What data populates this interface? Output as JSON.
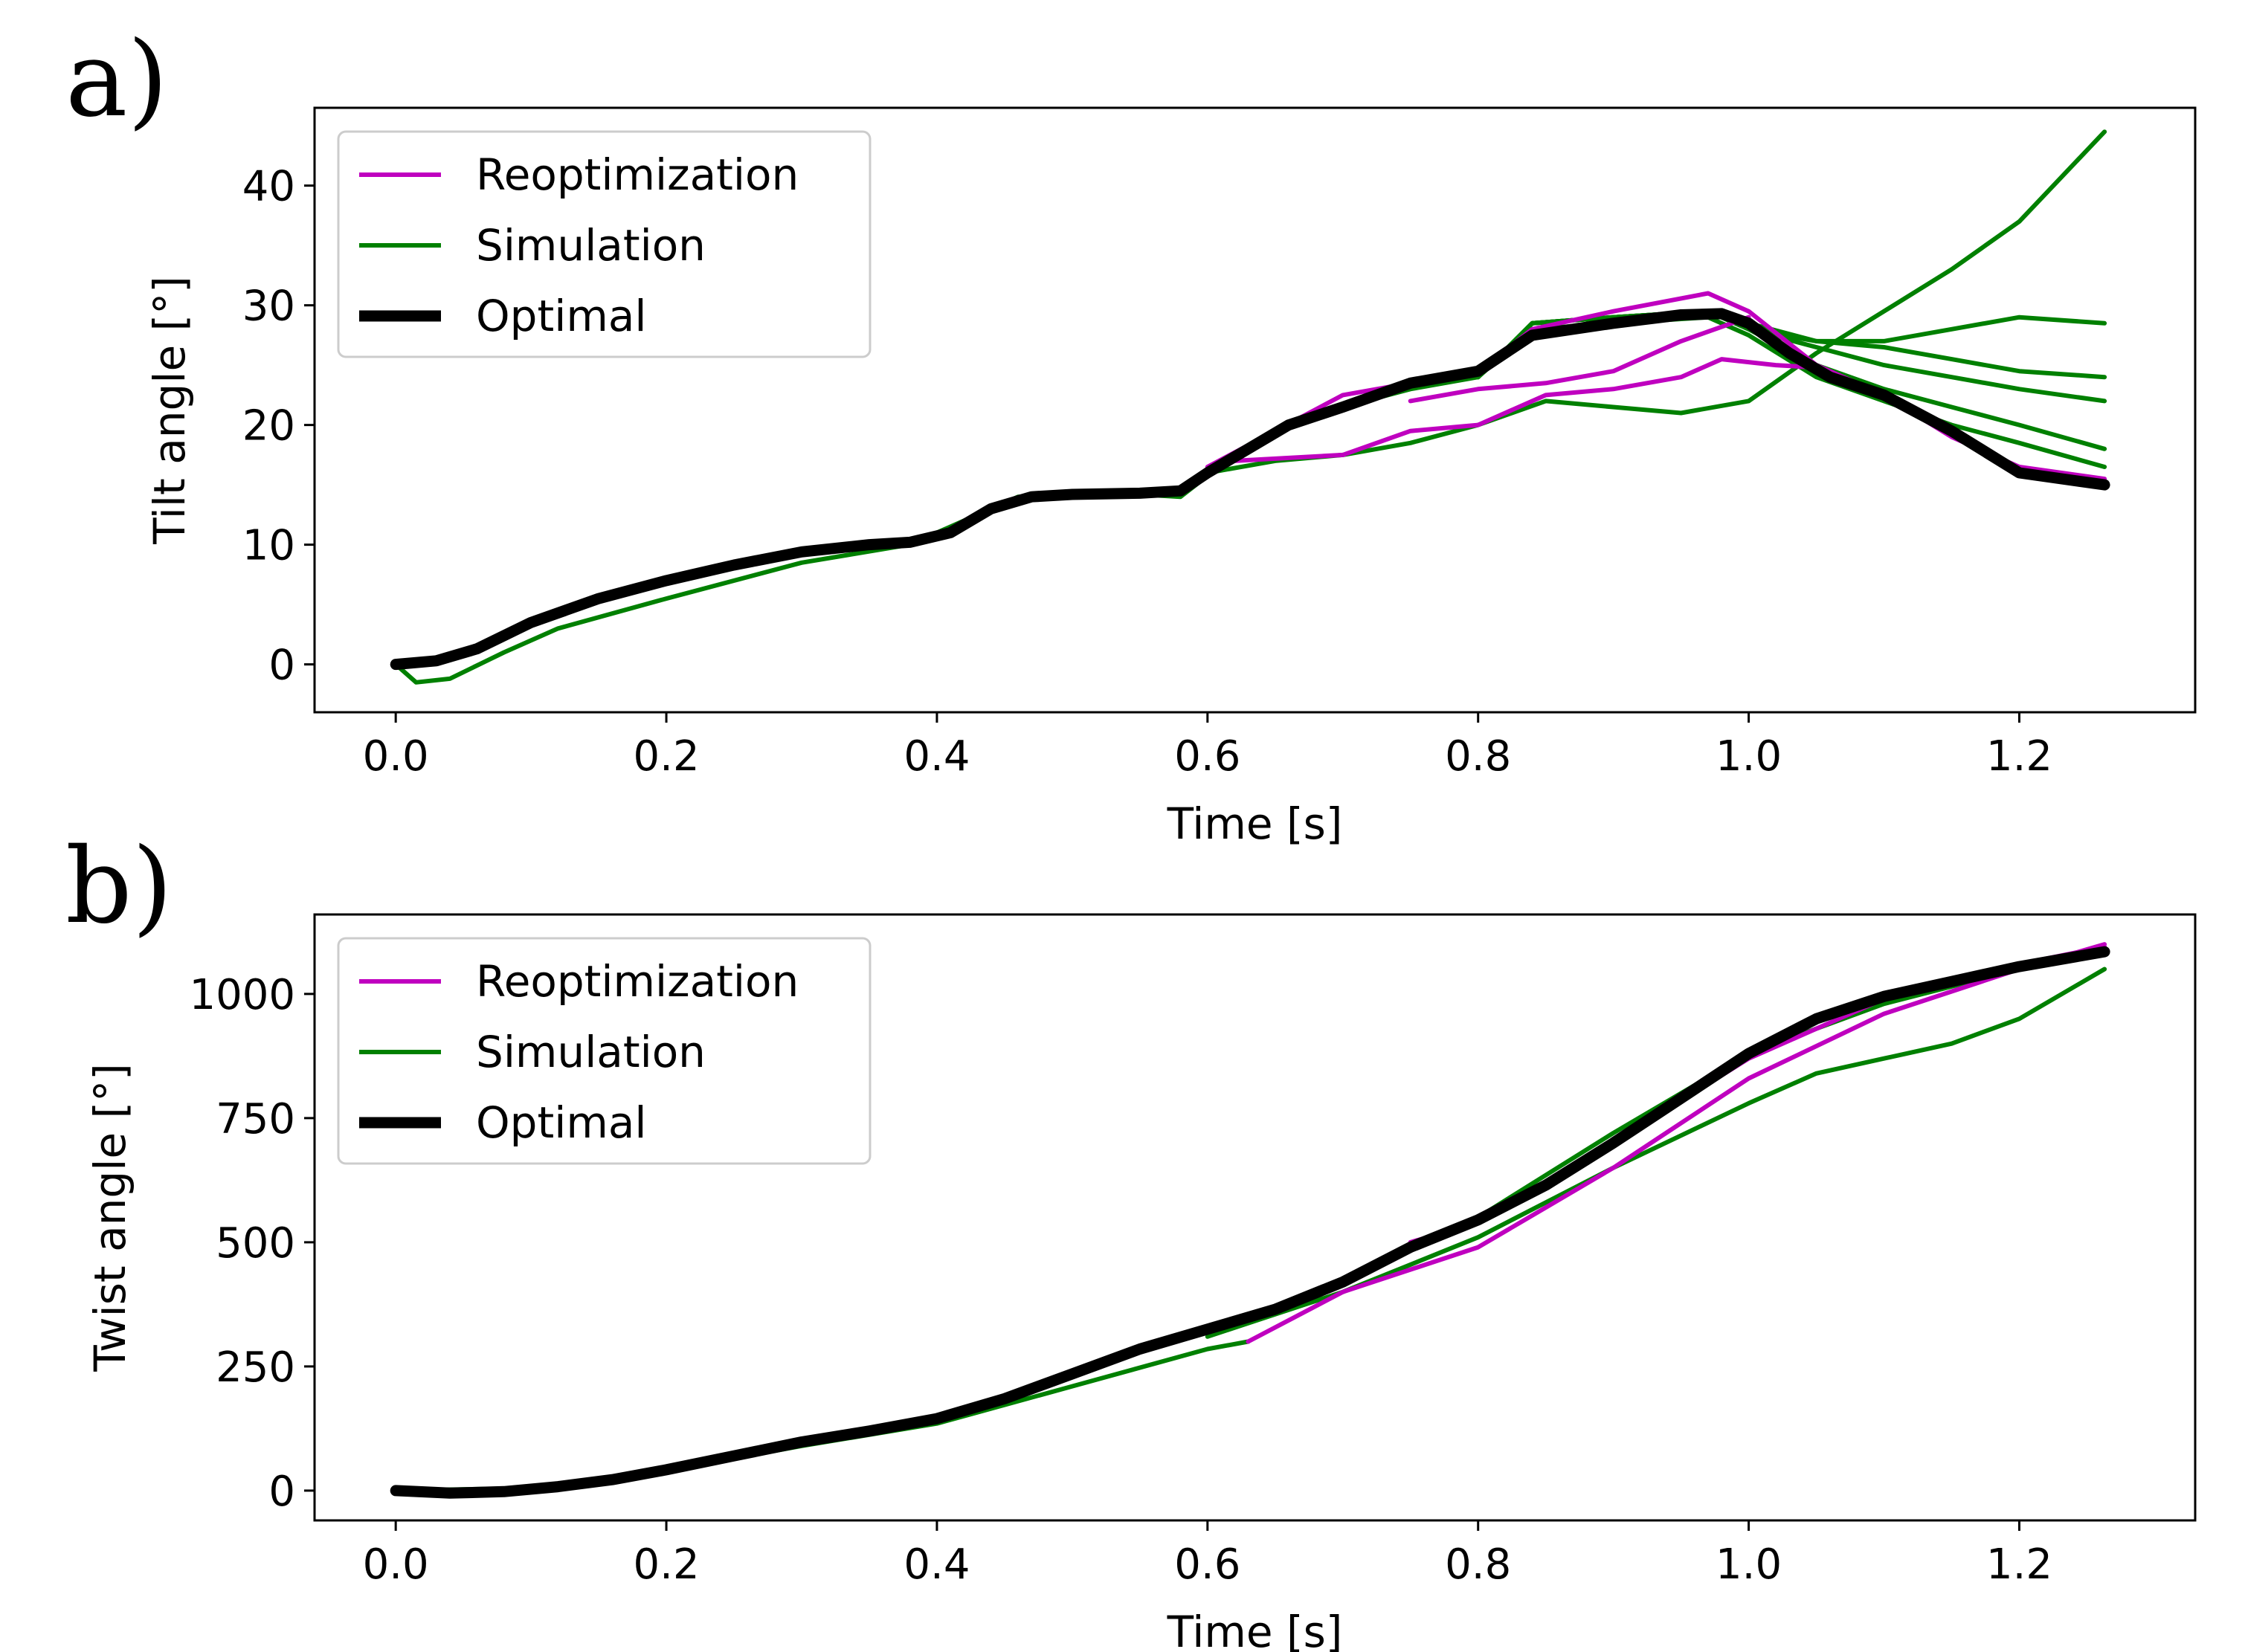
{
  "chart_data": [
    {
      "type": "line",
      "panel_label": "a)",
      "title": "",
      "xlabel": "Time [s]",
      "ylabel": "Tilt angle [°]",
      "xlim": [
        -0.06,
        1.33
      ],
      "ylim": [
        -4,
        46.5
      ],
      "xticks": [
        0.0,
        0.2,
        0.4,
        0.6,
        0.8,
        1.0,
        1.2
      ],
      "xtick_labels": [
        "0.0",
        "0.2",
        "0.4",
        "0.6",
        "0.8",
        "1.0",
        "1.2"
      ],
      "yticks": [
        0,
        10,
        20,
        30,
        40
      ],
      "ytick_labels": [
        "0",
        "10",
        "20",
        "30",
        "40"
      ],
      "grid": false,
      "legend_position": "top-left",
      "legend": [
        {
          "label": "Reoptimization",
          "color": "#bf00bf"
        },
        {
          "label": "Simulation",
          "color": "#008000"
        },
        {
          "label": "Optimal",
          "color": "#000000"
        }
      ],
      "series": [
        {
          "name": "Simulation",
          "color": "#008000",
          "x": [
            0,
            0.015,
            0.04,
            0.08,
            0.12,
            0.2,
            0.3,
            0.38,
            0.42,
            0.46,
            0.5,
            0.55,
            0.58,
            0.62,
            0.66,
            0.7,
            0.75,
            0.8,
            0.84,
            0.9,
            0.97,
            1.0,
            1.05,
            1.1,
            1.15,
            1.2,
            1.263
          ],
          "y": [
            0,
            -1.5,
            -1.2,
            1,
            3,
            5.5,
            8.5,
            10,
            12,
            14,
            14.2,
            14.2,
            14,
            17.5,
            20,
            21.5,
            23,
            24,
            28.5,
            29,
            29.5,
            28,
            27,
            26.5,
            25.5,
            24.5,
            24
          ]
        },
        {
          "name": "Simulation",
          "color": "#008000",
          "x": [
            0.8,
            0.84,
            0.9,
            0.97,
            1.0,
            1.05,
            1.1,
            1.15,
            1.2,
            1.263
          ],
          "y": [
            24,
            28.5,
            29,
            29.5,
            28,
            26.5,
            25,
            24,
            23,
            22
          ]
        },
        {
          "name": "Simulation",
          "color": "#008000",
          "x": [
            0.8,
            0.84,
            0.9,
            0.97,
            1.0,
            1.05,
            1.1,
            1.15,
            1.2,
            1.263
          ],
          "y": [
            24,
            28.5,
            29,
            29.5,
            28,
            25,
            23,
            21.5,
            20,
            18
          ]
        },
        {
          "name": "Simulation",
          "color": "#008000",
          "x": [
            0.8,
            0.84,
            0.9,
            0.97,
            1.0,
            1.05,
            1.1,
            1.15,
            1.2,
            1.263
          ],
          "y": [
            24,
            28,
            28.5,
            29,
            27.5,
            24,
            22,
            20,
            18.5,
            16.5
          ]
        },
        {
          "name": "Simulation",
          "color": "#008000",
          "x": [
            0.8,
            0.84,
            0.9,
            0.97,
            1.0,
            1.05,
            1.1,
            1.15,
            1.2,
            1.263
          ],
          "y": [
            24,
            28.5,
            29,
            29.5,
            28.5,
            27,
            27,
            28,
            29,
            28.5
          ]
        },
        {
          "name": "Simulation",
          "color": "#008000",
          "x": [
            0.6,
            0.65,
            0.7,
            0.75,
            0.8,
            0.85,
            0.9,
            0.95,
            1.0,
            1.05,
            1.1,
            1.15,
            1.2,
            1.263
          ],
          "y": [
            16,
            17,
            17.5,
            18.5,
            20,
            22,
            21.5,
            21,
            22,
            26,
            29.5,
            33,
            37,
            44.5
          ]
        },
        {
          "name": "Reoptimization",
          "color": "#bf00bf",
          "x": [
            0.6,
            0.7,
            0.8,
            0.84,
            0.9,
            0.97,
            1.0,
            1.05,
            1.1,
            1.15,
            1.2,
            1.263
          ],
          "y": [
            16.5,
            22.5,
            24.5,
            28,
            29.5,
            31,
            29.5,
            25,
            22.5,
            19,
            16.5,
            15.5
          ]
        },
        {
          "name": "Reoptimization",
          "color": "#bf00bf",
          "x": [
            0.62,
            0.7,
            0.75,
            0.8,
            0.85,
            0.9,
            0.95,
            0.98,
            1.02,
            1.05
          ],
          "y": [
            17,
            17.5,
            19.5,
            20,
            22.5,
            23,
            24,
            25.5,
            25,
            24.8
          ]
        },
        {
          "name": "Reoptimization",
          "color": "#bf00bf",
          "x": [
            0.75,
            0.8,
            0.85,
            0.9,
            0.95,
            1.0
          ],
          "y": [
            22,
            23,
            23.5,
            24.5,
            27,
            29
          ]
        },
        {
          "name": "Optimal",
          "color": "#000000",
          "x": [
            0,
            0.03,
            0.06,
            0.1,
            0.15,
            0.2,
            0.25,
            0.3,
            0.35,
            0.38,
            0.41,
            0.44,
            0.47,
            0.5,
            0.55,
            0.58,
            0.6,
            0.63,
            0.66,
            0.7,
            0.75,
            0.8,
            0.84,
            0.9,
            0.95,
            0.98,
            1.0,
            1.03,
            1.06,
            1.1,
            1.15,
            1.2,
            1.263
          ],
          "y": [
            0,
            0.3,
            1.3,
            3.5,
            5.5,
            7,
            8.3,
            9.4,
            10,
            10.2,
            11,
            13,
            14,
            14.2,
            14.3,
            14.5,
            16,
            18,
            20,
            21.5,
            23.5,
            24.5,
            27.5,
            28.5,
            29.2,
            29.3,
            28.5,
            26,
            24,
            22.5,
            19.5,
            16,
            15
          ]
        }
      ]
    },
    {
      "type": "line",
      "panel_label": "b)",
      "title": "",
      "xlabel": "Time [s]",
      "ylabel": "Twist angle [°]",
      "xlim": [
        -0.06,
        1.33
      ],
      "ylim": [
        -60,
        1160
      ],
      "xticks": [
        0.0,
        0.2,
        0.4,
        0.6,
        0.8,
        1.0,
        1.2
      ],
      "xtick_labels": [
        "0.0",
        "0.2",
        "0.4",
        "0.6",
        "0.8",
        "1.0",
        "1.2"
      ],
      "yticks": [
        0,
        250,
        500,
        750,
        1000
      ],
      "ytick_labels": [
        "0",
        "250",
        "500",
        "750",
        "1000"
      ],
      "grid": false,
      "legend_position": "top-left",
      "legend": [
        {
          "label": "Reoptimization",
          "color": "#bf00bf"
        },
        {
          "label": "Simulation",
          "color": "#008000"
        },
        {
          "label": "Optimal",
          "color": "#000000"
        }
      ],
      "series": [
        {
          "name": "Simulation",
          "color": "#008000",
          "x": [
            0.6,
            0.7,
            0.8,
            0.9,
            1.0,
            1.05,
            1.1,
            1.15,
            1.2,
            1.263
          ],
          "y": [
            310,
            400,
            510,
            650,
            780,
            840,
            870,
            900,
            950,
            1050
          ]
        },
        {
          "name": "Simulation",
          "color": "#008000",
          "x": [
            0.6,
            0.7,
            0.8,
            0.9,
            1.0,
            1.1,
            1.2,
            1.263
          ],
          "y": [
            320,
            420,
            550,
            720,
            880,
            980,
            1050,
            1085
          ]
        },
        {
          "name": "Simulation",
          "color": "#008000",
          "x": [
            0,
            0.1,
            0.2,
            0.3,
            0.4,
            0.5,
            0.6,
            0.63
          ],
          "y": [
            0,
            5,
            40,
            90,
            135,
            210,
            285,
            300
          ]
        },
        {
          "name": "Reoptimization",
          "color": "#bf00bf",
          "x": [
            0.63,
            0.7,
            0.8,
            0.9,
            1.0,
            1.1,
            1.2,
            1.263
          ],
          "y": [
            300,
            400,
            490,
            650,
            830,
            960,
            1050,
            1100
          ]
        },
        {
          "name": "Reoptimization",
          "color": "#bf00bf",
          "x": [
            0.75,
            0.8,
            0.9,
            1.0,
            1.1,
            1.2,
            1.263
          ],
          "y": [
            500,
            540,
            700,
            870,
            990,
            1060,
            1095
          ]
        },
        {
          "name": "Optimal",
          "color": "#000000",
          "x": [
            0,
            0.04,
            0.08,
            0.12,
            0.16,
            0.2,
            0.25,
            0.3,
            0.35,
            0.4,
            0.45,
            0.5,
            0.55,
            0.6,
            0.65,
            0.7,
            0.75,
            0.8,
            0.85,
            0.9,
            0.95,
            1.0,
            1.05,
            1.1,
            1.15,
            1.2,
            1.263
          ],
          "y": [
            0,
            -5,
            -2,
            8,
            22,
            42,
            70,
            98,
            120,
            145,
            185,
            235,
            285,
            325,
            365,
            420,
            490,
            545,
            615,
            700,
            790,
            880,
            950,
            995,
            1025,
            1055,
            1085
          ]
        }
      ]
    }
  ]
}
